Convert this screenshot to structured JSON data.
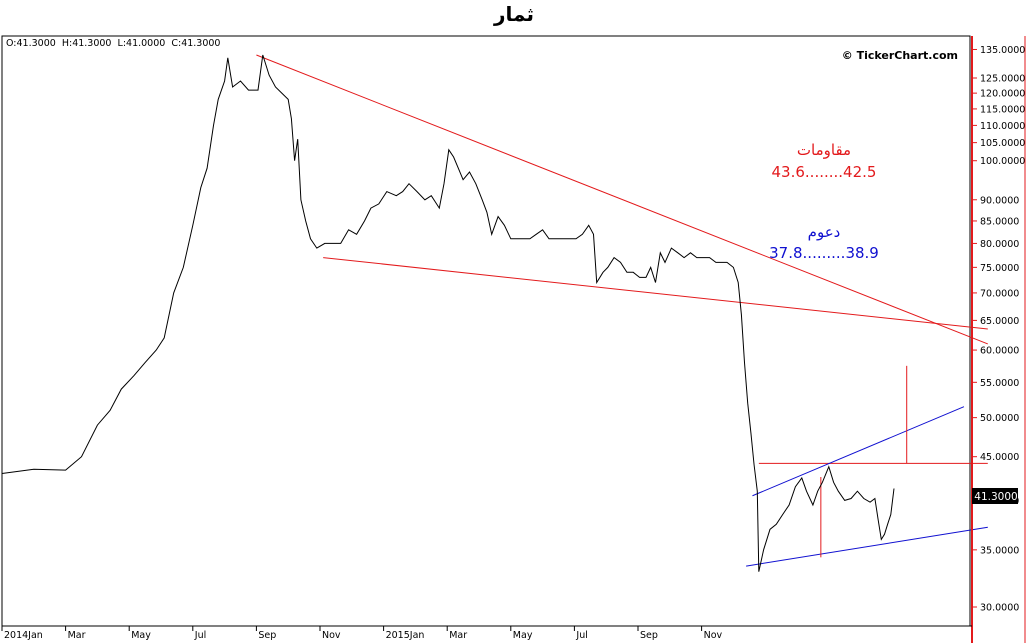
{
  "title": "ثمار",
  "ohlc": {
    "open": "O:41.3000",
    "high": "H:41.3000",
    "low": "L:41.0000",
    "close": "C:41.3000"
  },
  "copyright": "© TickerChart.com",
  "last_price": "41.3000",
  "annotations": {
    "resistance_title": "مقاومات",
    "resistance_levels": "43.6........42.5",
    "support_title": "دعوم",
    "support_levels": "37.8.........38.9"
  },
  "colors": {
    "price": "#000000",
    "resistance": "#e31a1c",
    "support": "#1010d0",
    "axis": "#e31a1c",
    "grid": "#cccccc"
  },
  "chart_data": {
    "type": "line",
    "y_scale": "log",
    "ylim": [
      28.5,
      140
    ],
    "x_ticks": [
      "2014Jan",
      "Mar",
      "May",
      "Jul",
      "Sep",
      "Nov",
      "2015Jan",
      "Mar",
      "May",
      "Jul",
      "Sep",
      "Nov"
    ],
    "y_ticks": [
      "135.0000",
      "125.0000",
      "120.0000",
      "115.0000",
      "110.0000",
      "105.0000",
      "100.0000",
      "90.0000",
      "85.0000",
      "80.0000",
      "75.0000",
      "70.0000",
      "65.0000",
      "60.0000",
      "55.0000",
      "50.0000",
      "45.0000",
      "40.0000",
      "35.0000",
      "30.0000"
    ],
    "series": [
      {
        "values": [
          [
            0,
            43
          ],
          [
            2,
            43.5
          ],
          [
            4,
            43.4
          ],
          [
            5,
            45
          ],
          [
            6,
            49
          ],
          [
            6.8,
            51
          ],
          [
            7.5,
            54
          ],
          [
            8.3,
            56
          ],
          [
            9,
            58
          ],
          [
            9.7,
            60
          ],
          [
            10.2,
            62
          ],
          [
            10.8,
            70
          ],
          [
            11.4,
            75
          ],
          [
            12,
            84
          ],
          [
            12.5,
            93
          ],
          [
            12.9,
            98
          ],
          [
            13.3,
            110
          ],
          [
            13.6,
            118
          ],
          [
            14,
            124
          ],
          [
            14.2,
            132
          ],
          [
            14.5,
            122
          ],
          [
            15,
            124
          ],
          [
            15.5,
            121
          ],
          [
            16.1,
            121
          ],
          [
            16.4,
            133
          ],
          [
            16.8,
            126
          ],
          [
            17.2,
            122
          ],
          [
            17.6,
            120
          ],
          [
            18,
            118
          ],
          [
            18.2,
            112
          ],
          [
            18.4,
            100
          ],
          [
            18.6,
            106
          ],
          [
            18.8,
            90
          ],
          [
            19.1,
            85
          ],
          [
            19.4,
            81
          ],
          [
            19.8,
            79
          ],
          [
            20.3,
            80
          ],
          [
            20.8,
            80
          ],
          [
            21.3,
            80
          ],
          [
            21.8,
            83
          ],
          [
            22.3,
            82
          ],
          [
            22.8,
            85
          ],
          [
            23.2,
            88
          ],
          [
            23.7,
            89
          ],
          [
            24.2,
            92
          ],
          [
            24.8,
            91
          ],
          [
            25.2,
            92
          ],
          [
            25.6,
            94
          ],
          [
            26.1,
            92
          ],
          [
            26.6,
            90
          ],
          [
            27,
            91
          ],
          [
            27.5,
            88
          ],
          [
            27.8,
            94
          ],
          [
            28.1,
            103
          ],
          [
            28.4,
            101
          ],
          [
            28.7,
            98
          ],
          [
            29,
            95
          ],
          [
            29.4,
            97
          ],
          [
            29.8,
            94
          ],
          [
            30.2,
            90
          ],
          [
            30.5,
            87
          ],
          [
            30.8,
            82
          ],
          [
            31.2,
            86
          ],
          [
            31.6,
            84
          ],
          [
            32,
            81
          ],
          [
            32.4,
            81
          ],
          [
            32.8,
            81
          ],
          [
            33.2,
            81
          ],
          [
            33.6,
            82
          ],
          [
            34,
            83
          ],
          [
            34.4,
            81
          ],
          [
            34.8,
            81
          ],
          [
            35.2,
            81
          ],
          [
            35.6,
            81
          ],
          [
            36.1,
            81
          ],
          [
            36.5,
            82
          ],
          [
            36.9,
            84
          ],
          [
            37.2,
            82
          ],
          [
            37.4,
            72
          ],
          [
            37.8,
            74
          ],
          [
            38.1,
            75
          ],
          [
            38.5,
            77
          ],
          [
            38.9,
            76
          ],
          [
            39.3,
            74
          ],
          [
            39.7,
            74
          ],
          [
            40.1,
            73
          ],
          [
            40.5,
            73
          ],
          [
            40.8,
            75
          ],
          [
            41.1,
            72
          ],
          [
            41.4,
            78
          ],
          [
            41.7,
            76
          ],
          [
            42.1,
            79
          ],
          [
            42.5,
            78
          ],
          [
            42.9,
            77
          ],
          [
            43.3,
            78
          ],
          [
            43.7,
            77
          ],
          [
            44.1,
            77
          ],
          [
            44.5,
            77
          ],
          [
            44.9,
            76
          ],
          [
            45.2,
            76
          ],
          [
            45.6,
            76
          ],
          [
            46,
            75
          ],
          [
            46.3,
            72
          ],
          [
            46.5,
            66
          ],
          [
            46.7,
            58
          ],
          [
            46.9,
            52
          ],
          [
            47.1,
            48
          ],
          [
            47.3,
            44
          ],
          [
            47.5,
            41
          ],
          [
            47.6,
            33
          ],
          [
            47.9,
            35
          ],
          [
            48.3,
            37
          ],
          [
            48.7,
            37.5
          ],
          [
            49.1,
            38.5
          ],
          [
            49.5,
            39.5
          ],
          [
            49.9,
            41.5
          ],
          [
            50.3,
            42.5
          ],
          [
            50.6,
            41
          ],
          [
            51,
            39.5
          ],
          [
            51.3,
            41
          ],
          [
            51.6,
            42
          ],
          [
            52,
            43.8
          ],
          [
            52.3,
            42
          ],
          [
            52.6,
            41
          ],
          [
            53,
            40
          ],
          [
            53.4,
            40.2
          ],
          [
            53.8,
            41
          ],
          [
            54.2,
            40.2
          ],
          [
            54.6,
            39.8
          ],
          [
            54.9,
            40.2
          ],
          [
            55.1,
            38
          ],
          [
            55.3,
            36
          ],
          [
            55.5,
            36.5
          ],
          [
            55.7,
            37.5
          ],
          [
            55.9,
            38.5
          ],
          [
            56.1,
            41.3
          ]
        ]
      }
    ],
    "trendlines": [
      {
        "color": "red",
        "from": [
          16,
          133
        ],
        "to": [
          62,
          61
        ]
      },
      {
        "color": "red",
        "from": [
          20.2,
          77
        ],
        "to": [
          62,
          63.5
        ]
      },
      {
        "color": "red",
        "from": [
          47.6,
          44.2
        ],
        "to": [
          62,
          44.2
        ]
      },
      {
        "color": "blue",
        "from": [
          46.8,
          33.5
        ],
        "to": [
          62,
          37.2
        ]
      },
      {
        "color": "blue",
        "from": [
          47.2,
          40.5
        ],
        "to": [
          60.5,
          51.5
        ]
      }
    ],
    "verticals": [
      {
        "color": "red",
        "x": 51.5,
        "from": 34.3,
        "to": 42.6
      },
      {
        "color": "red",
        "x": 56.9,
        "from": 44.2,
        "to": 57.5
      }
    ]
  }
}
